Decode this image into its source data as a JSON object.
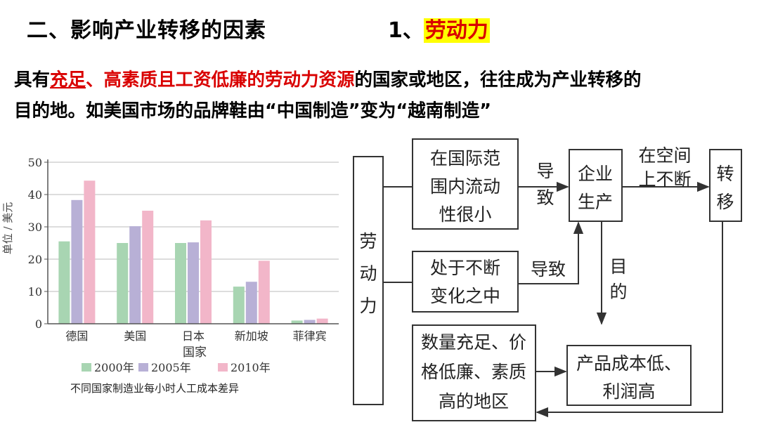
{
  "header": {
    "title": "二、影响产业转移的因素",
    "subtitle_num": "1、",
    "subtitle_highlight": "劳动力"
  },
  "paragraph": {
    "prefix": "具有",
    "red_underlined": "充足",
    "red_rest": "、高素质且工资低廉的劳动力资源",
    "line1_rest": "的国家或地区，往往成为产业转移的",
    "line2": "目的地。如美国市场的品牌鞋由“中国制造”变为“越南制造”"
  },
  "chart_data": {
    "type": "bar",
    "categories": [
      "德国",
      "美国",
      "日本",
      "新加坡",
      "菲律宾"
    ],
    "series": [
      {
        "name": "2000年",
        "values": [
          25.5,
          25,
          25,
          11.5,
          1
        ],
        "color": "#a8d5b2"
      },
      {
        "name": "2005年",
        "values": [
          38.3,
          30.2,
          25.2,
          13,
          1.2
        ],
        "color": "#b8b0d6"
      },
      {
        "name": "2010年",
        "values": [
          44.3,
          35,
          32,
          19.5,
          1.6
        ],
        "color": "#f2b6c9"
      }
    ],
    "xlabel": "国家",
    "ylabel": "单位 / 美元",
    "ylim": [
      0,
      50
    ],
    "yticks": [
      "0",
      "10",
      "20",
      "30",
      "40",
      "50"
    ],
    "grid": true,
    "legend": "bottom",
    "caption": "不同国家制造业每小时人工成本差异"
  },
  "diagram": {
    "labor": "劳\n动\n力",
    "flow_box": "在国际范\n围内流动\n性很小",
    "change_box": "处于不断\n变化之中",
    "enterprise": "企业\n生产",
    "transfer": "转\n移",
    "product": "产品成本低、\n利润高",
    "region": "数量充足、价\n格低廉、素质\n高的地区",
    "lead1": "导\n致",
    "lead2": "导致",
    "space": "在空间\n上不断",
    "purpose": "目\n的"
  }
}
